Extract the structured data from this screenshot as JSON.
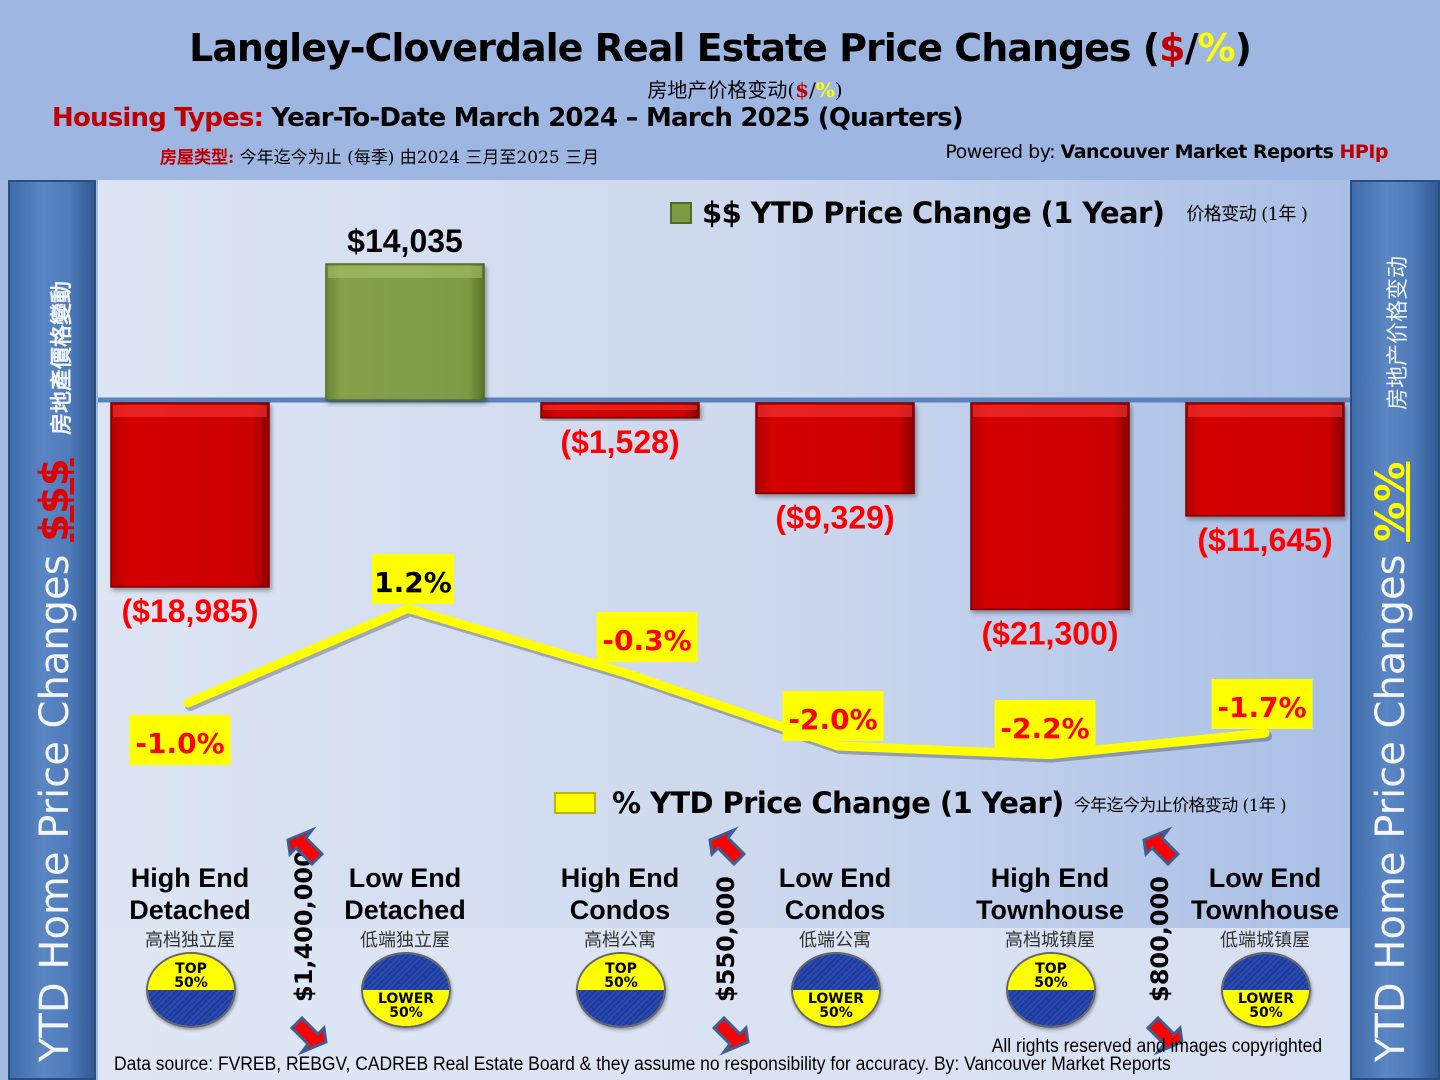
{
  "header": {
    "title_main": "Langley-Cloverdale Real Estate Price Changes (",
    "title_dollar": "$",
    "title_slash": "/",
    "title_pct": "%",
    "title_close": ")",
    "subtitle_cn": "房地产价格变动(",
    "subtitle_cn_dollar": "$",
    "subtitle_cn_slash": "/",
    "subtitle_cn_pct": "%",
    "subtitle_cn_close": ")",
    "housing_types_label": "Housing Types:",
    "housing_types_text": " Year-To-Date March 2024 – March 2025 (Quarters)",
    "housing_types_cn_label": "房屋类型:",
    "housing_types_cn_text": " 今年迄今为止  (每季) 由2024 三月至2025 三月",
    "powered_prefix": "Powered by: ",
    "powered_brand": "Vancouver Market Reports ",
    "powered_suffix": "HPIp"
  },
  "side_left": {
    "text": "YTD Home Price Changes ",
    "symbol": "$$$",
    "cn": "房地產價格變動"
  },
  "side_right": {
    "text": "YTD Home Price  Changes ",
    "symbol": "%%",
    "cn": "房地产价格变动"
  },
  "legend": {
    "dollar": {
      "label": "$$ YTD Price Change (1 Year)",
      "cn": "价格变动 (1年 )"
    },
    "percent": {
      "label": "% YTD Price Change (1 Year)",
      "cn": "今年迄今为止价格变动 (1年 )"
    }
  },
  "categories": [
    {
      "name_line1": "High End",
      "name_line2": "Detached",
      "cn": "高档独立屋",
      "badge": "TOP",
      "badge_pct": "50%"
    },
    {
      "name_line1": "Low End",
      "name_line2": "Detached",
      "cn": "低端独立屋",
      "badge": "LOWER",
      "badge_pct": "50%"
    },
    {
      "name_line1": "High End",
      "name_line2": "Condos",
      "cn": "高档公寓",
      "badge": "TOP",
      "badge_pct": "50%"
    },
    {
      "name_line1": "Low End",
      "name_line2": "Condos",
      "cn": "低端公寓",
      "badge": "LOWER",
      "badge_pct": "50%"
    },
    {
      "name_line1": "High End",
      "name_line2": "Townhouse",
      "cn": "高档城镇屋",
      "badge": "TOP",
      "badge_pct": "50%"
    },
    {
      "name_line1": "Low End",
      "name_line2": "Townhouse",
      "cn": "低端城镇屋",
      "badge": "LOWER",
      "badge_pct": "50%"
    }
  ],
  "dividers": [
    {
      "label": "$1,400,000"
    },
    {
      "label": "$550,000"
    },
    {
      "label": "$800,000"
    }
  ],
  "colors": {
    "positive_bar": "#7f9a45",
    "negative_bar": "#cc0000",
    "line": "#ffff00",
    "label_negative": "#ff0000",
    "label_positive": "#000000"
  },
  "chart_data": {
    "type": "bar",
    "title": "Langley-Cloverdale Real Estate Price Changes ($/%)",
    "categories": [
      "High End Detached",
      "Low End Detached",
      "High End Condos",
      "Low End Condos",
      "High End Townhouse",
      "Low End Townhouse"
    ],
    "series": [
      {
        "name": "$$ YTD Price Change (1 Year)",
        "type": "bar",
        "values": [
          -18985,
          14035,
          -1528,
          -9329,
          -21300,
          -11645
        ],
        "labels": [
          "($18,985)",
          "$14,035",
          "($1,528)",
          "($9,329)",
          "($21,300)",
          "($11,645)"
        ]
      },
      {
        "name": "% YTD Price Change (1 Year)",
        "type": "line",
        "values": [
          -1.0,
          1.2,
          -0.3,
          -2.0,
          -2.2,
          -1.7
        ],
        "labels": [
          "-1.0%",
          "1.2%",
          "-0.3%",
          "-2.0%",
          "-2.2%",
          "-1.7%"
        ]
      }
    ],
    "xlabel": "",
    "ylabel": "",
    "grid": false,
    "legend": "top-right"
  },
  "footer": {
    "rights": "All rights reserved and  images copyrighted",
    "source": "Data source: FVREB, REBGV, CADREB Real Estate Board & they assume no responsibility for accuracy. By: Vancouver Market Reports"
  }
}
